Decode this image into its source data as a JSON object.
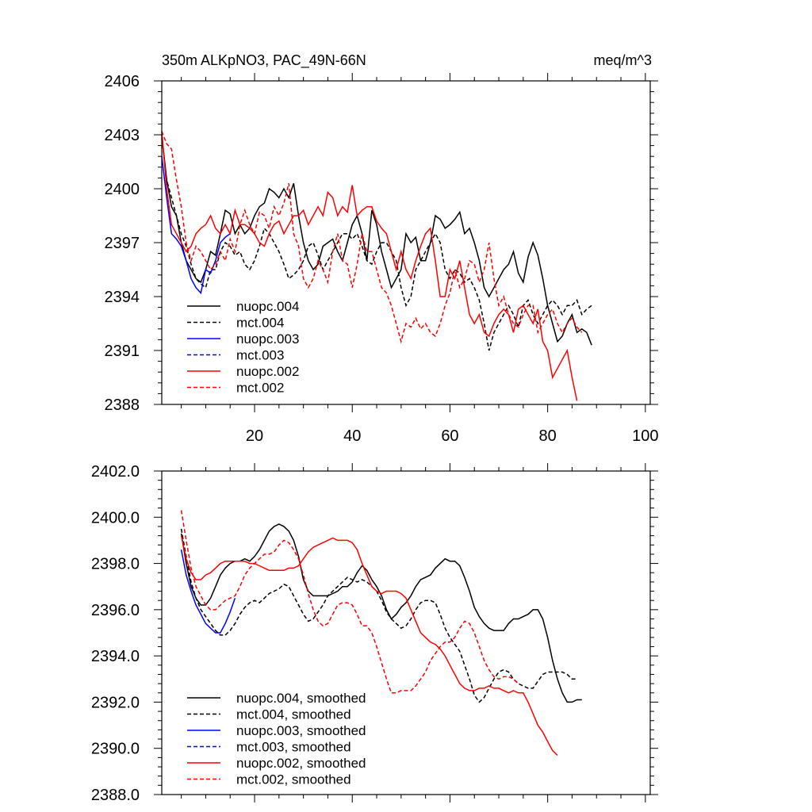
{
  "chart_data": [
    {
      "type": "line",
      "title": "350m ALKpNO3, PAC_49N-66N",
      "units": "meq/m^3",
      "xlim": [
        1,
        101
      ],
      "ylim": [
        2388,
        2406
      ],
      "x_ticks": [
        20,
        40,
        60,
        80,
        100
      ],
      "y_ticks": [
        2388,
        2391,
        2394,
        2397,
        2400,
        2403,
        2406
      ],
      "y_tick_labels": [
        "2388",
        "2391",
        "2394",
        "2397",
        "2400",
        "2403",
        "2406"
      ],
      "legend_position": "bottom-left",
      "series": [
        {
          "name": "nuopc.004",
          "color": "#000000",
          "dash": "solid",
          "x_start": 1,
          "values": [
            2403.0,
            2400.5,
            2399.0,
            2398.5,
            2397.0,
            2396.0,
            2395.5,
            2395.0,
            2394.8,
            2395.5,
            2396.5,
            2396.3,
            2397.5,
            2398.8,
            2398.6,
            2397.5,
            2398.0,
            2397.5,
            2397.8,
            2398.5,
            2399.0,
            2399.2,
            2400.0,
            2399.8,
            2399.5,
            2400.0,
            2399.5,
            2400.3,
            2398.5,
            2397.0,
            2396.0,
            2395.5,
            2395.8,
            2396.8,
            2397.0,
            2397.2,
            2396.5,
            2396.0,
            2397.0,
            2398.0,
            2398.5,
            2397.5,
            2396.0,
            2398.8,
            2398.0,
            2396.5,
            2395.5,
            2394.5,
            2395.0,
            2395.5,
            2397.5,
            2397.0,
            2397.3,
            2396.0,
            2396.0,
            2397.0,
            2398.5,
            2398.3,
            2397.8,
            2398.0,
            2398.3,
            2398.7,
            2397.5,
            2397.8,
            2397.0,
            2396.0,
            2394.5,
            2394.0,
            2394.5,
            2395.0,
            2395.5,
            2395.8,
            2396.5,
            2395.3,
            2394.8,
            2396.2,
            2397.0,
            2396.3,
            2395.0,
            2393.5,
            2392.5,
            2391.5,
            2391.8,
            2392.5,
            2393.0,
            2392.0,
            2392.2,
            2392.0,
            2391.3
          ]
        },
        {
          "name": "mct.004",
          "color": "#000000",
          "dash": "dashed",
          "x_start": 1,
          "values": [
            2402.8,
            2400.5,
            2399.5,
            2398.5,
            2397.5,
            2396.8,
            2395.8,
            2395.0,
            2394.7,
            2394.5,
            2395.5,
            2395.5,
            2396.5,
            2397.0,
            2396.8,
            2396.3,
            2396.5,
            2395.8,
            2395.5,
            2396.0,
            2396.8,
            2397.8,
            2397.5,
            2397.0,
            2396.5,
            2395.8,
            2395.0,
            2395.2,
            2395.5,
            2396.0,
            2396.8,
            2397.0,
            2396.3,
            2395.5,
            2396.0,
            2396.5,
            2397.0,
            2397.5,
            2397.5,
            2397.2,
            2397.5,
            2396.8,
            2396.0,
            2395.8,
            2396.5,
            2397.0,
            2397.0,
            2396.5,
            2396.0,
            2394.5,
            2393.5,
            2394.0,
            2395.5,
            2396.0,
            2396.5,
            2397.0,
            2397.5,
            2397.0,
            2395.5,
            2395.0,
            2395.5,
            2395.3,
            2394.8,
            2395.0,
            2394.5,
            2393.8,
            2392.5,
            2391.0,
            2392.0,
            2392.5,
            2393.0,
            2393.5,
            2393.0,
            2392.3,
            2393.5,
            2393.8,
            2393.0,
            2392.5,
            2393.0,
            2393.5,
            2393.8,
            2393.5,
            2393.0,
            2393.5,
            2393.5,
            2393.8,
            2393.0,
            2393.3,
            2393.5
          ]
        },
        {
          "name": "nuopc.003",
          "color": "#0000ff",
          "dash": "solid",
          "x_start": 1,
          "values": [
            2401.8,
            2399.5,
            2397.5,
            2397.2,
            2396.8,
            2396.0,
            2395.0,
            2394.5,
            2394.2,
            2395.5,
            2395.3,
            2396.0,
            2397.0,
            2397.3,
            2397.5
          ]
        },
        {
          "name": "mct.003",
          "color": "#0000ff",
          "dash": "dashed",
          "x_start": 1,
          "values": []
        },
        {
          "name": "nuopc.002",
          "color": "#ff0000",
          "dash": "solid",
          "x_start": 1,
          "values": [
            2403.2,
            2400.0,
            2398.0,
            2397.5,
            2397.0,
            2396.5,
            2396.8,
            2397.5,
            2397.8,
            2398.0,
            2398.5,
            2397.8,
            2397.5,
            2398.0,
            2397.5,
            2398.8,
            2398.0,
            2398.0,
            2397.8,
            2397.5,
            2397.0,
            2396.8,
            2397.5,
            2398.0,
            2398.2,
            2397.5,
            2398.0,
            2398.5,
            2398.5,
            2398.8,
            2398.0,
            2398.5,
            2399.0,
            2398.5,
            2399.8,
            2399.5,
            2398.5,
            2399.0,
            2398.7,
            2400.2,
            2398.5,
            2398.8,
            2399.0,
            2399.0,
            2398.2,
            2397.8,
            2397.5,
            2396.5,
            2395.5,
            2396.5,
            2395.5,
            2395.0,
            2396.0,
            2396.8,
            2397.5,
            2397.8,
            2396.0,
            2394.0,
            2394.0,
            2395.5,
            2395.0,
            2396.0,
            2394.5,
            2393.0,
            2392.5,
            2393.0,
            2392.0,
            2391.8,
            2392.5,
            2393.0,
            2393.3,
            2393.0,
            2392.0,
            2393.3,
            2393.5,
            2393.0,
            2392.5,
            2393.3,
            2391.5,
            2391.0,
            2389.5,
            2390.0,
            2390.5,
            2391.0,
            2389.5,
            2388.2
          ]
        },
        {
          "name": "mct.002",
          "color": "#ff0000",
          "dash": "dashed",
          "x_start": 1,
          "values": [
            2403.2,
            2402.5,
            2402.2,
            2400.5,
            2399.0,
            2397.0,
            2396.0,
            2396.8,
            2396.5,
            2396.0,
            2395.5,
            2395.8,
            2396.5,
            2396.0,
            2397.2,
            2396.5,
            2398.0,
            2398.8,
            2398.0,
            2397.5,
            2398.7,
            2398.5,
            2397.8,
            2399.0,
            2398.5,
            2399.2,
            2400.3,
            2397.5,
            2396.8,
            2395.0,
            2394.5,
            2395.0,
            2396.0,
            2395.5,
            2394.8,
            2396.5,
            2397.5,
            2396.0,
            2395.8,
            2394.5,
            2395.8,
            2397.5,
            2396.5,
            2396.5,
            2395.5,
            2394.5,
            2394.2,
            2393.5,
            2392.5,
            2391.5,
            2392.5,
            2392.3,
            2392.8,
            2392.2,
            2392.5,
            2392.0,
            2391.8,
            2392.5,
            2393.5,
            2394.2,
            2395.5,
            2394.5,
            2395.0,
            2396.0,
            2395.8,
            2394.8,
            2395.5,
            2397.0,
            2395.0,
            2393.5,
            2394.0,
            2393.0,
            2392.5,
            2392.3,
            2393.0,
            2393.5,
            2393.5,
            2392.0,
            2392.5,
            2393.0,
            2393.3,
            2392.5,
            2392.0,
            2392.5,
            2392.8,
            2392.3,
            2392.0
          ]
        }
      ]
    },
    {
      "type": "line",
      "xlim": [
        1,
        101
      ],
      "ylim": [
        2388,
        2402
      ],
      "x_ticks": [
        20,
        40,
        60,
        80,
        100
      ],
      "y_ticks": [
        2388,
        2390,
        2392,
        2394,
        2396,
        2398,
        2400,
        2402
      ],
      "y_tick_labels": [
        "2388.0",
        "2390.0",
        "2392.0",
        "2394.0",
        "2396.0",
        "2398.0",
        "2400.0",
        "2402.0"
      ],
      "legend_position": "bottom-left",
      "series": [
        {
          "name": "nuopc.004, smoothed",
          "color": "#000000",
          "dash": "solid",
          "x_start": 5,
          "values": [
            2399.3,
            2398.0,
            2397.0,
            2396.5,
            2396.2,
            2396.2,
            2396.5,
            2397.0,
            2397.5,
            2397.8,
            2398.0,
            2398.1,
            2398.1,
            2398.2,
            2398.1,
            2398.3,
            2398.6,
            2399.0,
            2399.4,
            2399.6,
            2399.7,
            2399.6,
            2399.4,
            2399.0,
            2398.3,
            2397.3,
            2396.8,
            2396.6,
            2396.6,
            2396.6,
            2396.6,
            2396.7,
            2396.8,
            2397.0,
            2397.0,
            2397.2,
            2397.6,
            2397.9,
            2397.7,
            2397.3,
            2397.0,
            2396.6,
            2396.0,
            2395.6,
            2395.8,
            2396.1,
            2396.3,
            2396.6,
            2397.0,
            2397.3,
            2397.4,
            2397.5,
            2397.8,
            2398.0,
            2398.2,
            2398.1,
            2398.1,
            2397.9,
            2397.4,
            2396.8,
            2396.1,
            2395.7,
            2395.4,
            2395.2,
            2395.1,
            2395.1,
            2395.1,
            2395.4,
            2395.6,
            2395.6,
            2395.7,
            2395.8,
            2396.0,
            2396.0,
            2395.6,
            2394.8,
            2393.8,
            2393.0,
            2392.4,
            2392.0,
            2392.0,
            2392.1,
            2392.1
          ]
        },
        {
          "name": "mct.004, smoothed",
          "color": "#000000",
          "dash": "dashed",
          "x_start": 5,
          "values": [
            2399.5,
            2398.3,
            2397.2,
            2396.5,
            2396.0,
            2395.7,
            2395.4,
            2395.1,
            2394.9,
            2394.9,
            2395.1,
            2395.4,
            2395.8,
            2396.1,
            2396.3,
            2396.4,
            2396.3,
            2396.5,
            2396.7,
            2396.8,
            2396.9,
            2397.1,
            2397.0,
            2396.6,
            2396.2,
            2395.8,
            2395.5,
            2395.6,
            2395.9,
            2396.2,
            2396.6,
            2396.8,
            2397.0,
            2397.2,
            2397.4,
            2397.3,
            2397.2,
            2397.3,
            2397.2,
            2397.0,
            2396.8,
            2396.4,
            2395.9,
            2395.6,
            2395.4,
            2395.2,
            2395.3,
            2395.6,
            2396.0,
            2396.3,
            2396.4,
            2396.4,
            2396.3,
            2395.8,
            2395.2,
            2394.8,
            2394.5,
            2394.2,
            2393.6,
            2393.0,
            2392.3,
            2392.0,
            2392.2,
            2392.6,
            2393.0,
            2393.3,
            2393.4,
            2393.3,
            2393.0,
            2392.8,
            2392.7,
            2392.6,
            2392.6,
            2392.9,
            2393.2,
            2393.3,
            2393.3,
            2393.3,
            2393.3,
            2393.2,
            2393.0,
            2393.0
          ]
        },
        {
          "name": "nuopc.003, smoothed",
          "color": "#0000ff",
          "dash": "solid",
          "x_start": 5,
          "values": [
            2398.6,
            2397.5,
            2396.8,
            2396.2,
            2395.8,
            2395.4,
            2395.2,
            2395.0,
            2395.0,
            2395.4,
            2395.9,
            2396.5
          ]
        },
        {
          "name": "mct.003, smoothed",
          "color": "#0000ff",
          "dash": "dashed",
          "x_start": 5,
          "values": []
        },
        {
          "name": "nuopc.002, smoothed",
          "color": "#ff0000",
          "dash": "solid",
          "x_start": 5,
          "values": [
            2399.2,
            2398.2,
            2397.6,
            2397.3,
            2397.3,
            2397.5,
            2397.6,
            2397.8,
            2398.0,
            2398.1,
            2398.1,
            2398.1,
            2398.1,
            2398.1,
            2398.0,
            2398.0,
            2397.9,
            2397.8,
            2397.7,
            2397.7,
            2397.7,
            2397.7,
            2397.8,
            2397.8,
            2397.9,
            2398.2,
            2398.5,
            2398.7,
            2398.8,
            2398.9,
            2399.0,
            2399.1,
            2399.0,
            2399.0,
            2399.0,
            2398.9,
            2398.6,
            2398.0,
            2397.5,
            2397.0,
            2396.8,
            2396.7,
            2396.8,
            2396.8,
            2396.8,
            2396.7,
            2396.5,
            2396.0,
            2395.5,
            2395.0,
            2394.8,
            2394.6,
            2394.5,
            2394.3,
            2394.0,
            2393.6,
            2393.2,
            2392.8,
            2392.6,
            2392.5,
            2392.5,
            2392.6,
            2392.6,
            2392.7,
            2392.6,
            2392.6,
            2392.5,
            2392.4,
            2392.5,
            2392.4,
            2392.4,
            2392.0,
            2391.5,
            2391.0,
            2390.7,
            2390.3,
            2389.9,
            2389.7
          ]
        },
        {
          "name": "mct.002, smoothed",
          "color": "#ff0000",
          "dash": "dashed",
          "x_start": 5,
          "values": [
            2400.3,
            2399.0,
            2397.8,
            2397.0,
            2396.6,
            2396.2,
            2396.0,
            2396.0,
            2396.2,
            2396.4,
            2396.5,
            2396.6,
            2397.0,
            2397.5,
            2397.8,
            2398.0,
            2398.2,
            2398.4,
            2398.4,
            2398.5,
            2398.8,
            2399.0,
            2398.9,
            2398.6,
            2398.2,
            2397.5,
            2396.7,
            2396.0,
            2395.5,
            2395.3,
            2395.4,
            2395.8,
            2396.2,
            2396.3,
            2396.3,
            2396.2,
            2395.8,
            2395.3,
            2395.3,
            2395.0,
            2394.4,
            2393.7,
            2393.0,
            2392.4,
            2392.4,
            2392.5,
            2392.5,
            2392.5,
            2392.7,
            2393.0,
            2393.3,
            2393.8,
            2394.1,
            2394.4,
            2394.6,
            2394.6,
            2394.8,
            2395.2,
            2395.5,
            2395.4,
            2395.0,
            2394.4,
            2393.8,
            2393.4,
            2393.1,
            2393.0,
            2393.1,
            2393.1,
            2393.0,
            2392.8
          ]
        }
      ]
    }
  ]
}
